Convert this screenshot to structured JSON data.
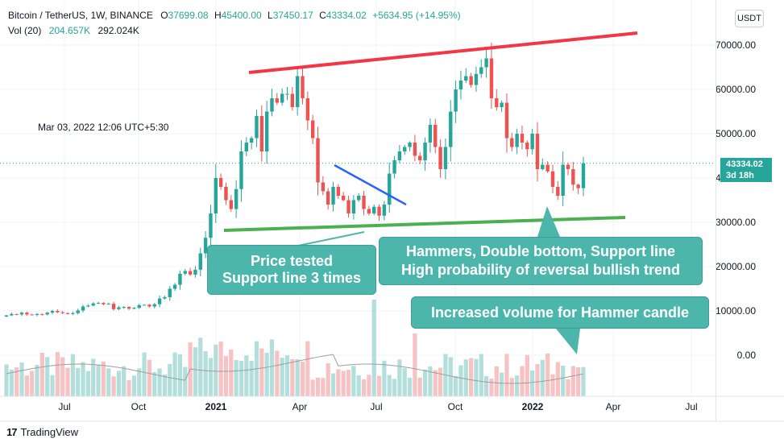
{
  "header": {
    "symbol": "Bitcoin / TetherUS, 1W, BINANCE",
    "o_label": "O",
    "o": "37699.08",
    "h_label": "H",
    "h": "45400.00",
    "l_label": "L",
    "l": "37450.17",
    "c_label": "C",
    "c": "43334.02",
    "change": "+5634.95 (+14.95%)",
    "vol_label": "Vol (20)",
    "vol1": "204.657K",
    "vol2": "292.024K"
  },
  "timestamp": "Mar 03, 2022 12:06 UTC+5:30",
  "currency_button": "USDT",
  "last_price": {
    "price": "43334.02",
    "countdown": "3d 18h"
  },
  "annotations": {
    "support_tested": [
      "Price tested",
      "Support line 3 times"
    ],
    "reversal": [
      "Hammers, Double bottom, Support line",
      "High probability of reversal bullish trend"
    ],
    "volume": "Increased volume for Hammer candle"
  },
  "brand": "TradingView",
  "colors": {
    "up": "#26a69a",
    "down": "#ef5350",
    "vol_up": "#b2dfdb",
    "vol_down": "#f7c2c4",
    "resistance": "#f23645",
    "support": "#4caf50",
    "trendline": "#2962ff",
    "callout": "#4db6ac"
  },
  "chart_data": {
    "type": "candlestick",
    "y_axis": {
      "ticks": [
        0,
        10000,
        20000,
        30000,
        40000,
        50000,
        60000,
        70000
      ],
      "tick_labels": [
        "0.00",
        "10000.00",
        "20000.00",
        "30000.00",
        "40000.00",
        "50000.00",
        "60000.00",
        "70000.00"
      ]
    },
    "x_axis": {
      "tick_labels": [
        "Jul",
        "Oct",
        "2021",
        "Apr",
        "Jul",
        "Oct",
        "2022",
        "Apr",
        "Jul"
      ]
    },
    "close_prices": [
      9000,
      9300,
      9200,
      9600,
      9200,
      9100,
      9300,
      9200,
      9600,
      10000,
      9700,
      9500,
      9300,
      9500,
      10100,
      11000,
      11200,
      11700,
      11800,
      11500,
      11600,
      10400,
      10800,
      10900,
      10500,
      10700,
      11300,
      11400,
      11000,
      11500,
      12800,
      13100,
      15000,
      15900,
      18400,
      19000,
      18200,
      19300,
      23000,
      26500,
      32000,
      40000,
      38000,
      35000,
      33000,
      37500,
      46000,
      48000,
      49000,
      54000,
      46000,
      55000,
      58000,
      57000,
      59000,
      59000,
      56000,
      63000,
      58000,
      53000,
      49000,
      39000,
      37000,
      34000,
      38000,
      36000,
      35000,
      32000,
      35000,
      36000,
      33000,
      32000,
      33500,
      31500,
      34000,
      41000,
      44000,
      46000,
      47000,
      48000,
      45000,
      44000,
      48000,
      52000,
      47000,
      42000,
      47000,
      55000,
      60000,
      62000,
      63000,
      61000,
      63500,
      65000,
      67000,
      58000,
      56000,
      57000,
      49000,
      47000,
      50000,
      48000,
      46500,
      50000,
      42000,
      43000,
      41500,
      38000,
      36000,
      43000,
      42000,
      38500,
      37700,
      43334
    ],
    "volume_ma_line": "gray moving average",
    "lines": [
      {
        "name": "resistance",
        "color": "red"
      },
      {
        "name": "support",
        "color": "green"
      },
      {
        "name": "trendline",
        "color": "blue"
      }
    ]
  }
}
